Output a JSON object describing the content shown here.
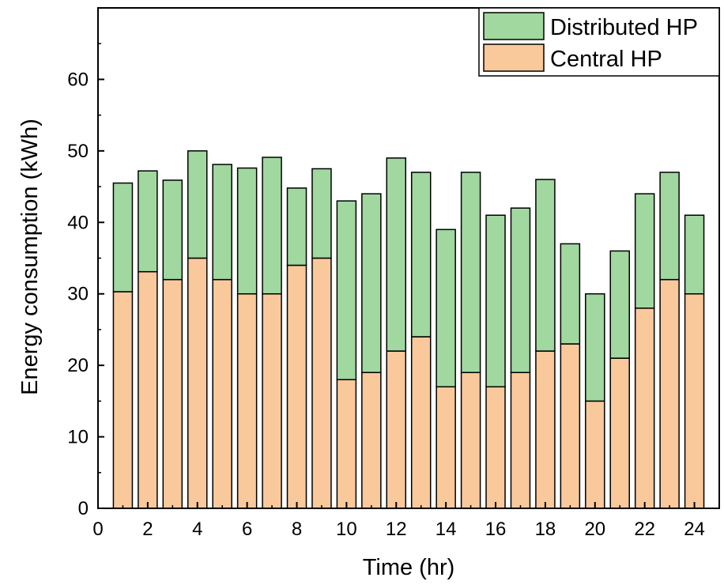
{
  "chart_data": {
    "type": "bar",
    "stacked": true,
    "x": [
      1,
      2,
      3,
      4,
      5,
      6,
      7,
      8,
      9,
      10,
      11,
      12,
      13,
      14,
      15,
      16,
      17,
      18,
      19,
      20,
      21,
      22,
      23,
      24
    ],
    "series": [
      {
        "name": "Central HP",
        "color": "#f9c89b",
        "values": [
          30.3,
          33.1,
          32,
          35,
          32,
          30,
          30,
          34,
          35,
          18,
          19,
          22,
          24,
          17,
          19,
          17,
          19,
          22,
          23,
          15,
          21,
          28,
          32,
          30
        ]
      },
      {
        "name": "Distributed HP",
        "color": "#a0d8a0",
        "values": [
          15.2,
          14.1,
          13.9,
          15,
          16.1,
          17.6,
          19.1,
          10.8,
          12.5,
          25,
          25,
          27,
          23,
          22,
          28,
          24,
          23,
          24,
          14,
          15,
          15,
          16,
          15,
          11
        ]
      }
    ],
    "xlabel": "Time (hr)",
    "ylabel": "Energy consumption (kWh)",
    "xlim": [
      0,
      25
    ],
    "ylim": [
      0,
      70
    ],
    "xticks": [
      "0",
      "2",
      "4",
      "6",
      "8",
      "10",
      "12",
      "14",
      "16",
      "18",
      "20",
      "22",
      "24"
    ],
    "yticks": [
      "0",
      "10",
      "20",
      "30",
      "40",
      "50",
      "60"
    ],
    "legend_placement": "top-right",
    "legend_order": [
      "Distributed HP",
      "Central HP"
    ],
    "grid": false
  }
}
